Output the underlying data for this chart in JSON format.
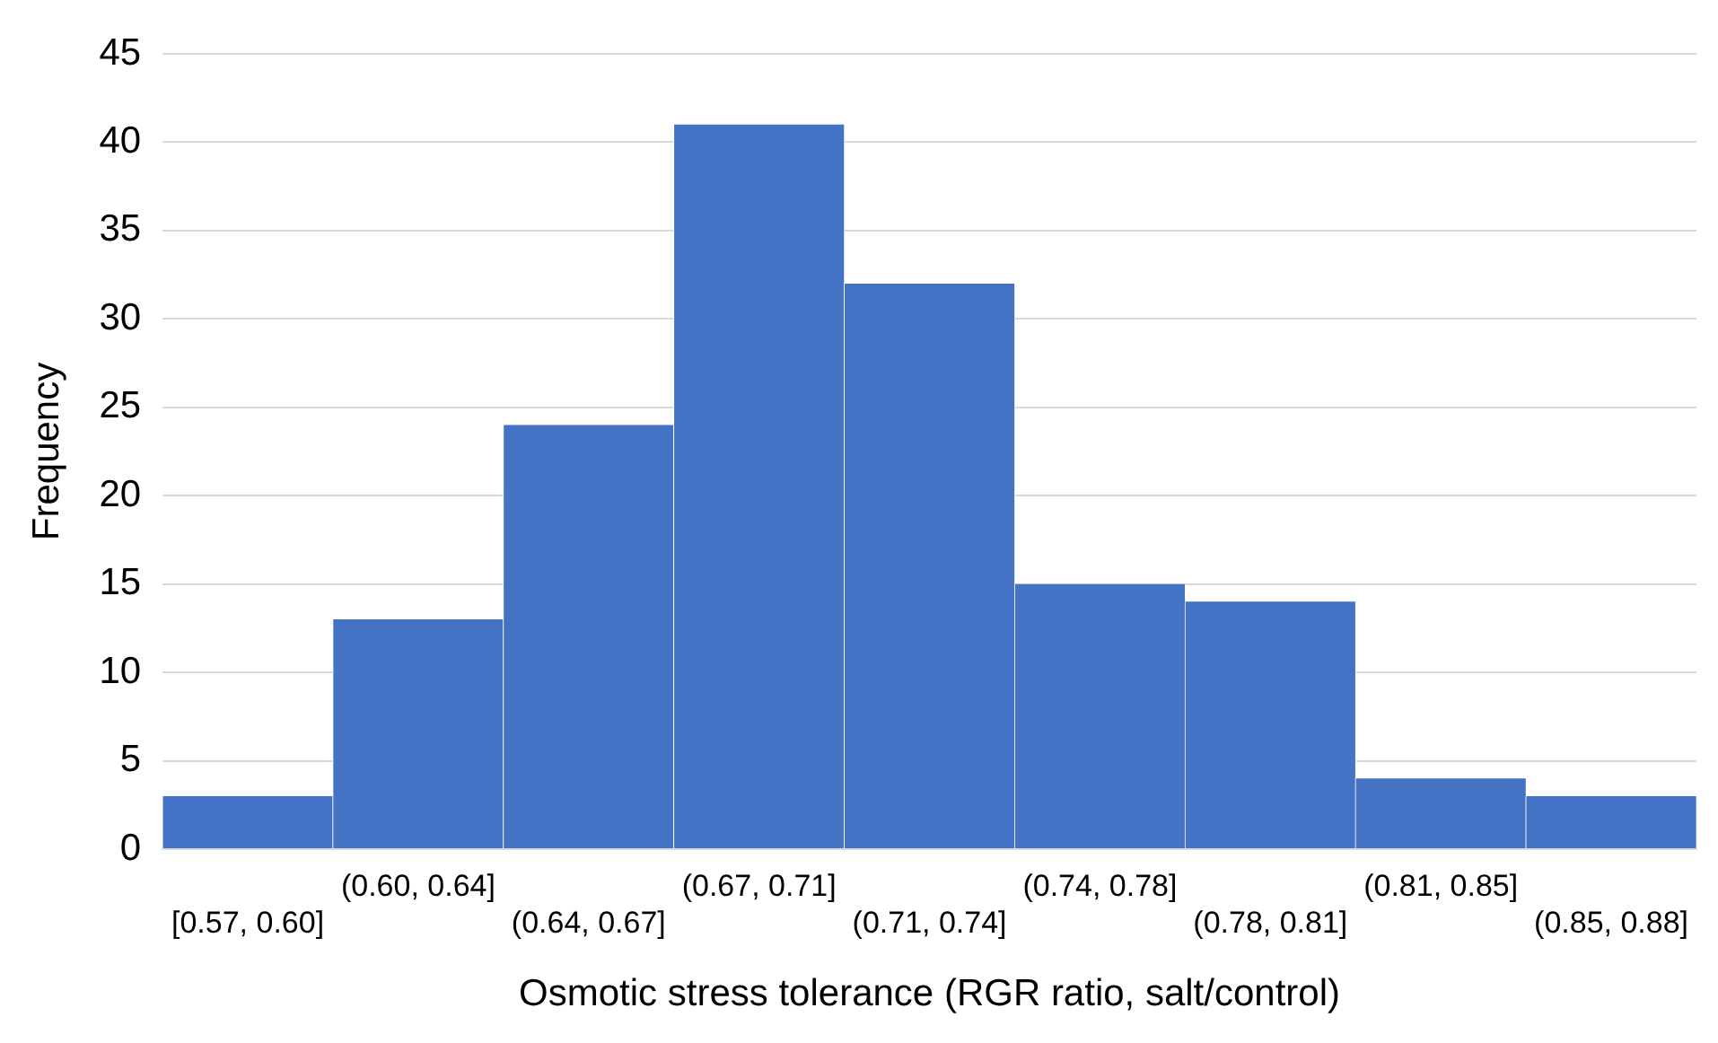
{
  "chart_data": {
    "type": "bar",
    "xlabel": "Osmotic stress tolerance (RGR ratio, salt/control)",
    "ylabel": "Frequency",
    "categories": [
      "[0.57, 0.60]",
      "(0.60, 0.64]",
      "(0.64, 0.67]",
      "(0.67, 0.71]",
      "(0.71, 0.74]",
      "(0.74, 0.78]",
      "(0.78, 0.81]",
      "(0.81, 0.85]",
      "(0.85, 0.88]"
    ],
    "values": [
      3,
      13,
      24,
      41,
      32,
      15,
      14,
      4,
      3
    ],
    "color": "#4472c4",
    "ylim": [
      0,
      45
    ],
    "yticks": [
      0,
      5,
      10,
      15,
      20,
      25,
      30,
      35,
      40,
      45
    ],
    "grid": "y",
    "legend": false
  }
}
